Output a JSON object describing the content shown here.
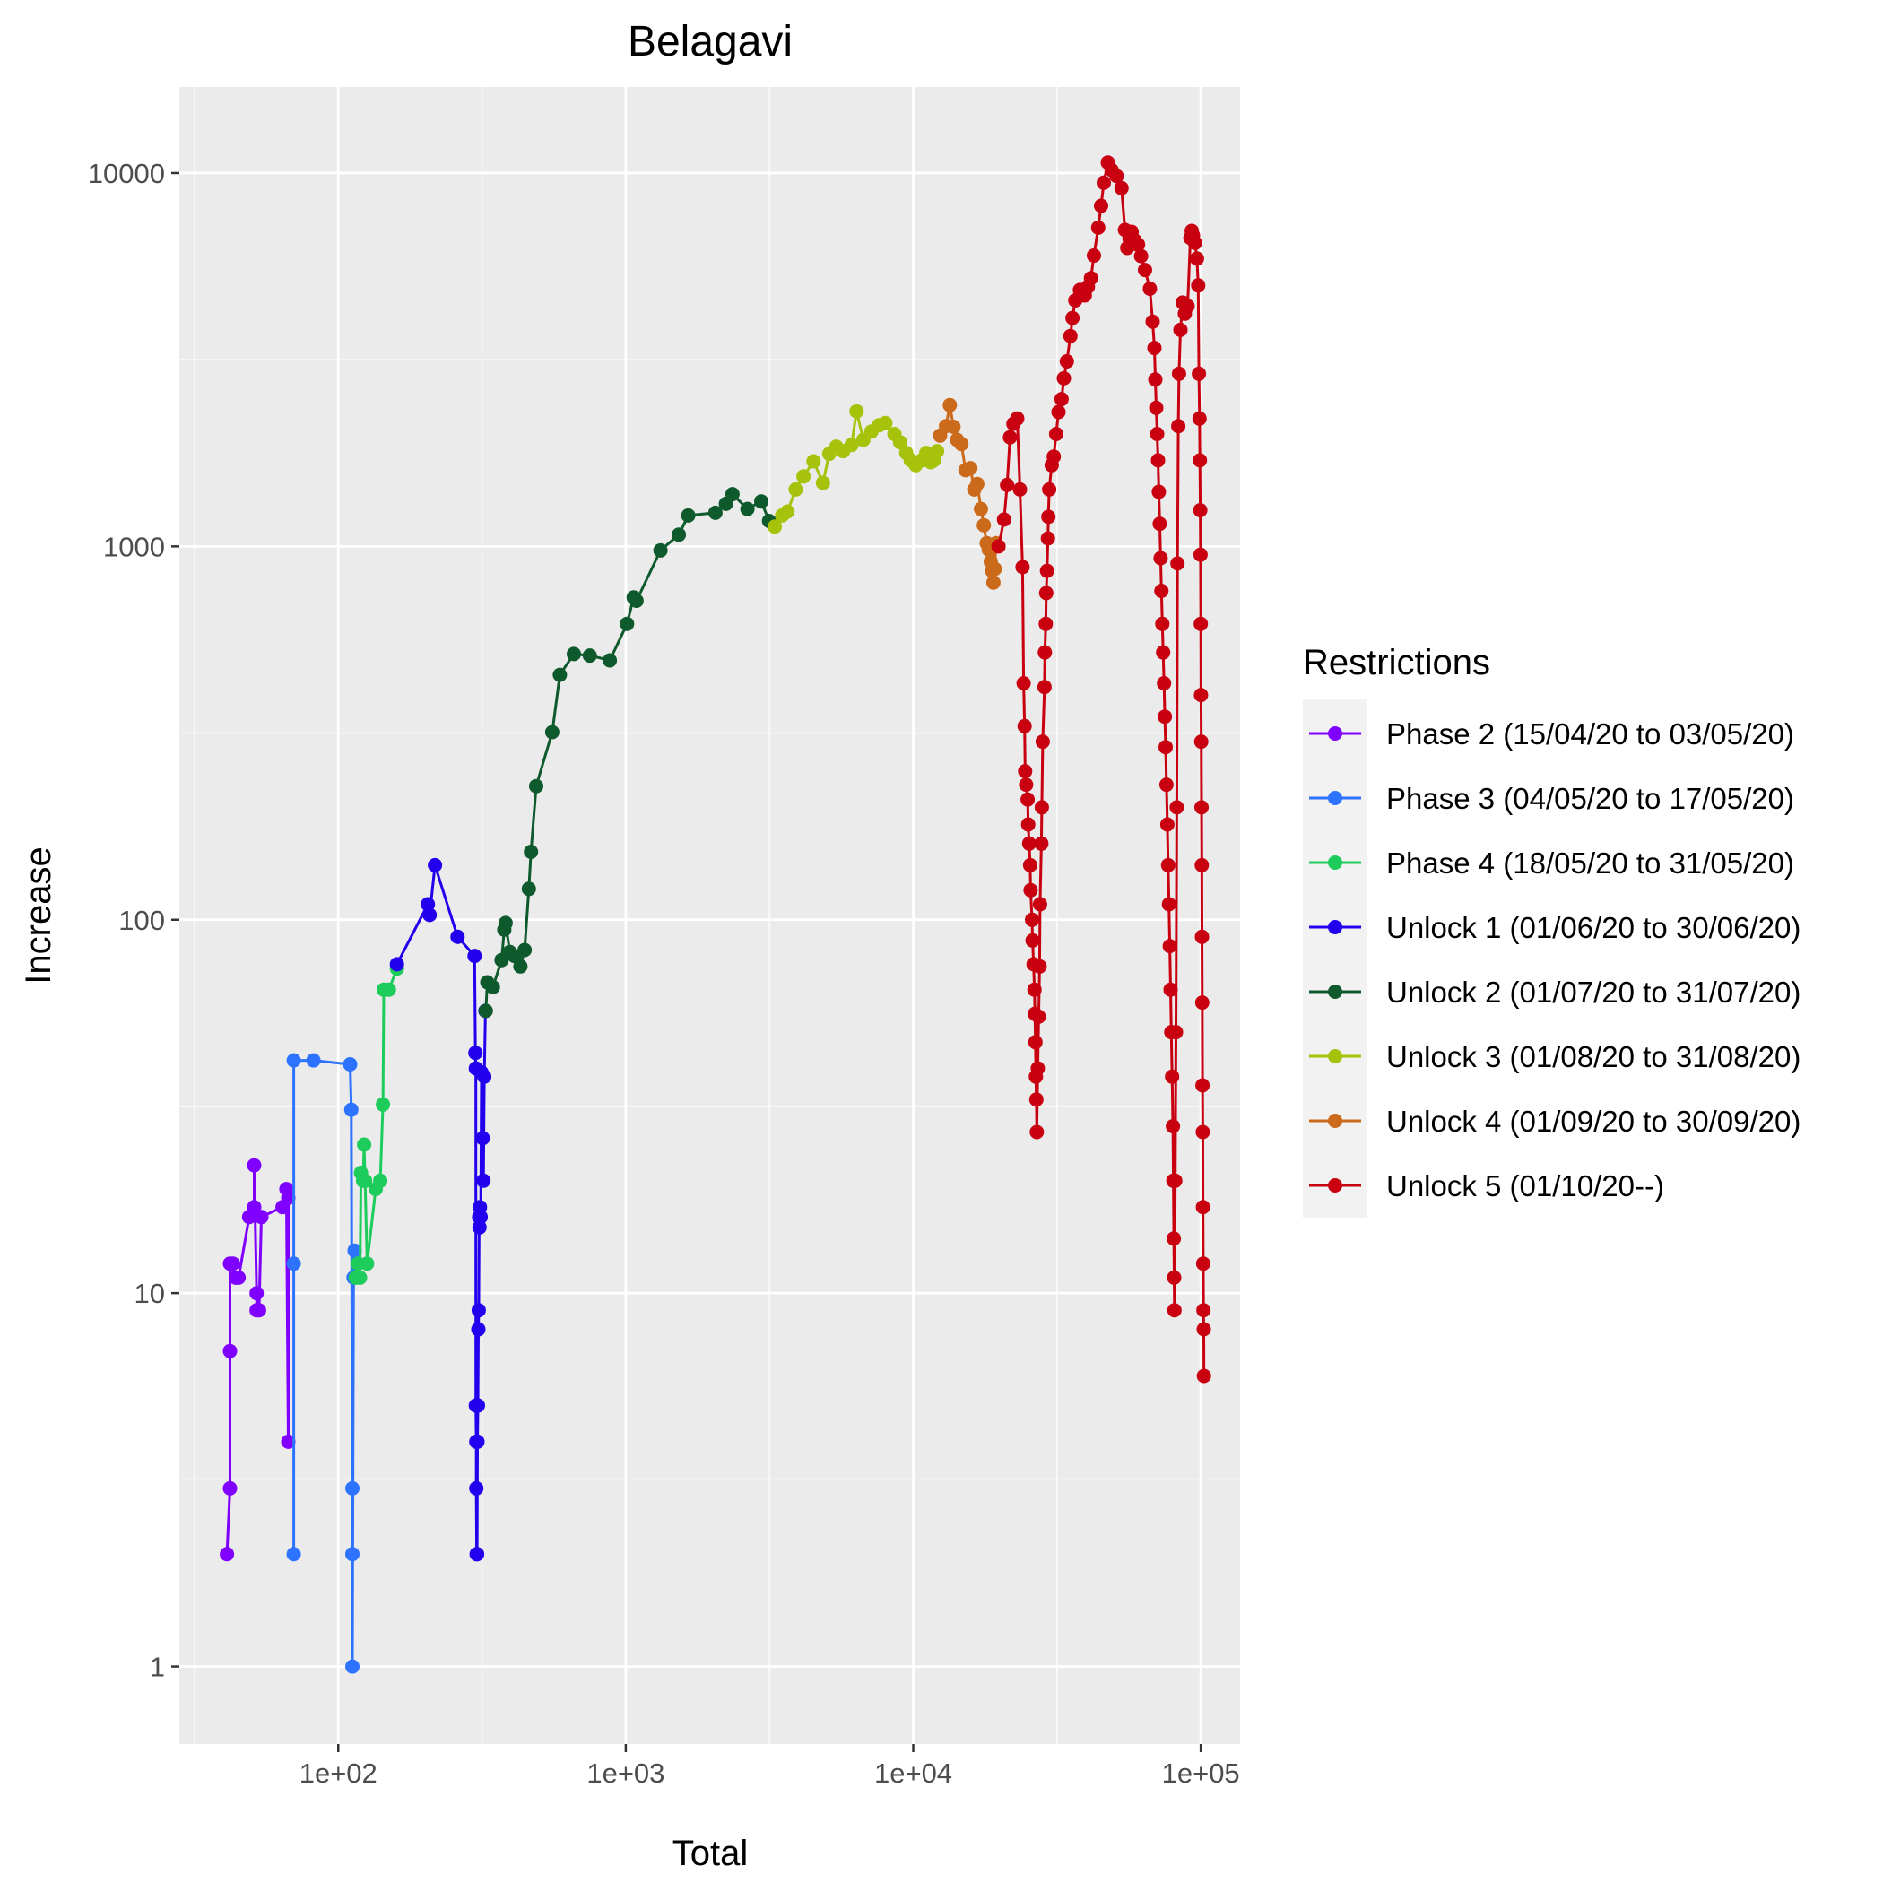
{
  "chart_data": {
    "type": "line",
    "title": "Belagavi",
    "xlabel": "Total",
    "ylabel": "Increase",
    "x_scale": "log10",
    "y_scale": "log10",
    "xlim": [
      28,
      137000
    ],
    "ylim": [
      0.62,
      17000
    ],
    "x_ticks": [
      {
        "value": 100,
        "label": "1e+02"
      },
      {
        "value": 1000,
        "label": "1e+03"
      },
      {
        "value": 10000,
        "label": "1e+04"
      },
      {
        "value": 100000,
        "label": "1e+05"
      }
    ],
    "y_ticks": [
      {
        "value": 1,
        "label": "1"
      },
      {
        "value": 10,
        "label": "10"
      },
      {
        "value": 100,
        "label": "100"
      },
      {
        "value": 1000,
        "label": "1000"
      },
      {
        "value": 10000,
        "label": "10000"
      }
    ],
    "grid": true,
    "legend": {
      "title": "Restrictions",
      "position": "right"
    },
    "series": [
      {
        "name": "Phase 2 (15/04/20 to 03/05/20)",
        "color": "#7f00ff",
        "points": [
          [
            41,
            2
          ],
          [
            42,
            3
          ],
          [
            42,
            7
          ],
          [
            42,
            12
          ],
          [
            43,
            12
          ],
          [
            44,
            11
          ],
          [
            45,
            11
          ],
          [
            49,
            16
          ],
          [
            51,
            17
          ],
          [
            51,
            22
          ],
          [
            52,
            10
          ],
          [
            52,
            9
          ],
          [
            53,
            9
          ],
          [
            54,
            16
          ],
          [
            64,
            17
          ],
          [
            66,
            19
          ],
          [
            67,
            4
          ],
          [
            67,
            18
          ]
        ]
      },
      {
        "name": "Phase 3 (04/05/20 to 17/05/20)",
        "color": "#2d73ff",
        "points": [
          [
            70,
            2
          ],
          [
            70,
            12
          ],
          [
            70,
            42
          ],
          [
            82,
            42
          ],
          [
            110,
            41
          ],
          [
            111,
            31
          ],
          [
            112,
            3
          ],
          [
            112,
            2
          ],
          [
            112,
            1
          ],
          [
            113,
            11
          ],
          [
            114,
            13
          ]
        ]
      },
      {
        "name": "Phase 4 (18/05/20 to 31/05/20)",
        "color": "#1ecc5c",
        "points": [
          [
            115,
            11
          ],
          [
            117,
            12
          ],
          [
            119,
            11
          ],
          [
            120,
            21
          ],
          [
            122,
            20
          ],
          [
            123,
            25
          ],
          [
            124,
            20
          ],
          [
            126,
            12
          ],
          [
            135,
            19
          ],
          [
            140,
            20
          ],
          [
            143,
            32
          ],
          [
            144,
            65
          ],
          [
            150,
            65
          ],
          [
            160,
            74
          ]
        ]
      },
      {
        "name": "Unlock 1 (01/06/20 to 30/06/20)",
        "color": "#2200ee",
        "points": [
          [
            160,
            76
          ],
          [
            205,
            110
          ],
          [
            208,
            103
          ],
          [
            217,
            140
          ],
          [
            260,
            90
          ],
          [
            298,
            80
          ],
          [
            300,
            44
          ],
          [
            301,
            40
          ],
          [
            301,
            5
          ],
          [
            302,
            4
          ],
          [
            302,
            3
          ],
          [
            303,
            2
          ],
          [
            304,
            2
          ],
          [
            305,
            4
          ],
          [
            306,
            5
          ],
          [
            307,
            8
          ],
          [
            308,
            9
          ],
          [
            309,
            16
          ],
          [
            310,
            15
          ],
          [
            311,
            17
          ],
          [
            313,
            16
          ],
          [
            315,
            39
          ],
          [
            318,
            26
          ],
          [
            320,
            20
          ],
          [
            322,
            38
          ],
          [
            325,
            57
          ]
        ]
      },
      {
        "name": "Unlock 2 (01/07/20 to 31/07/20)",
        "color": "#0f5a2c",
        "points": [
          [
            326,
            57
          ],
          [
            330,
            68
          ],
          [
            345,
            66
          ],
          [
            370,
            78
          ],
          [
            378,
            94
          ],
          [
            382,
            98
          ],
          [
            395,
            82
          ],
          [
            410,
            80
          ],
          [
            430,
            75
          ],
          [
            445,
            83
          ],
          [
            460,
            121
          ],
          [
            468,
            152
          ],
          [
            488,
            228
          ],
          [
            555,
            318
          ],
          [
            590,
            453
          ],
          [
            660,
            515
          ],
          [
            750,
            510
          ],
          [
            880,
            495
          ],
          [
            1010,
            620
          ],
          [
            1065,
            730
          ],
          [
            1090,
            715
          ],
          [
            1320,
            975
          ],
          [
            1530,
            1075
          ],
          [
            1650,
            1210
          ],
          [
            2050,
            1230
          ],
          [
            2230,
            1300
          ],
          [
            2350,
            1380
          ],
          [
            2650,
            1260
          ],
          [
            2960,
            1320
          ],
          [
            3150,
            1170
          ]
        ]
      },
      {
        "name": "Unlock 3 (01/08/20 to 31/08/20)",
        "color": "#a7c20b",
        "points": [
          [
            3300,
            1130
          ],
          [
            3500,
            1210
          ],
          [
            3650,
            1240
          ],
          [
            3900,
            1420
          ],
          [
            4150,
            1540
          ],
          [
            4500,
            1690
          ],
          [
            4850,
            1480
          ],
          [
            5100,
            1770
          ],
          [
            5400,
            1850
          ],
          [
            5700,
            1800
          ],
          [
            6100,
            1870
          ],
          [
            6350,
            2300
          ],
          [
            6700,
            1930
          ],
          [
            7150,
            2030
          ],
          [
            7600,
            2110
          ],
          [
            8000,
            2140
          ],
          [
            8600,
            2000
          ],
          [
            9000,
            1900
          ],
          [
            9450,
            1780
          ],
          [
            9800,
            1700
          ],
          [
            10200,
            1650
          ],
          [
            10700,
            1700
          ],
          [
            11100,
            1780
          ],
          [
            11500,
            1680
          ],
          [
            11800,
            1700
          ],
          [
            12100,
            1800
          ]
        ]
      },
      {
        "name": "Unlock 4 (01/09/20 to 30/09/20)",
        "color": "#cc6a1c",
        "points": [
          [
            12400,
            1980
          ],
          [
            13000,
            2100
          ],
          [
            13400,
            2390
          ],
          [
            13800,
            2090
          ],
          [
            14200,
            1930
          ],
          [
            14700,
            1880
          ],
          [
            15200,
            1600
          ],
          [
            15800,
            1620
          ],
          [
            16300,
            1420
          ],
          [
            16700,
            1470
          ],
          [
            17200,
            1260
          ],
          [
            17600,
            1140
          ],
          [
            18000,
            1020
          ],
          [
            18300,
            980
          ],
          [
            18600,
            910
          ],
          [
            18800,
            860
          ],
          [
            19000,
            800
          ],
          [
            19200,
            870
          ],
          [
            19400,
            1020
          ]
        ]
      },
      {
        "name": "Unlock 5 (01/10/20--)",
        "color": "#c80010",
        "points": [
          [
            19800,
            1000
          ],
          [
            20700,
            1180
          ],
          [
            21200,
            1460
          ],
          [
            21700,
            1960
          ],
          [
            22300,
            2130
          ],
          [
            23000,
            2200
          ],
          [
            23500,
            1420
          ],
          [
            24000,
            880
          ],
          [
            24200,
            430
          ],
          [
            24400,
            330
          ],
          [
            24500,
            250
          ],
          [
            24700,
            230
          ],
          [
            25000,
            210
          ],
          [
            25100,
            180
          ],
          [
            25300,
            160
          ],
          [
            25500,
            140
          ],
          [
            25600,
            120
          ],
          [
            25900,
            100
          ],
          [
            26000,
            88
          ],
          [
            26200,
            76
          ],
          [
            26400,
            65
          ],
          [
            26500,
            56
          ],
          [
            26600,
            47
          ],
          [
            26700,
            38
          ],
          [
            26800,
            33
          ],
          [
            26900,
            27
          ],
          [
            27100,
            40
          ],
          [
            27300,
            55
          ],
          [
            27500,
            75
          ],
          [
            27600,
            110
          ],
          [
            27900,
            160
          ],
          [
            28000,
            200
          ],
          [
            28200,
            300
          ],
          [
            28600,
            420
          ],
          [
            28700,
            520
          ],
          [
            28900,
            620
          ],
          [
            29000,
            750
          ],
          [
            29200,
            860
          ],
          [
            29400,
            1050
          ],
          [
            29500,
            1200
          ],
          [
            29700,
            1420
          ],
          [
            30300,
            1650
          ],
          [
            30800,
            1740
          ],
          [
            31400,
            2000
          ],
          [
            32000,
            2290
          ],
          [
            32800,
            2480
          ],
          [
            33400,
            2820
          ],
          [
            34200,
            3130
          ],
          [
            35200,
            3660
          ],
          [
            35800,
            4090
          ],
          [
            36600,
            4560
          ],
          [
            38000,
            4860
          ],
          [
            39500,
            4700
          ],
          [
            40500,
            4960
          ],
          [
            41500,
            5230
          ],
          [
            42500,
            6010
          ],
          [
            44000,
            7140
          ],
          [
            45000,
            8170
          ],
          [
            46000,
            9420
          ],
          [
            47500,
            10670
          ],
          [
            49000,
            10190
          ],
          [
            51000,
            9810
          ],
          [
            53000,
            9110
          ],
          [
            54500,
            7040
          ],
          [
            55500,
            6300
          ],
          [
            56500,
            6670
          ],
          [
            57500,
            6960
          ],
          [
            59000,
            6590
          ],
          [
            60500,
            6430
          ],
          [
            62000,
            5990
          ],
          [
            64000,
            5500
          ],
          [
            66500,
            4900
          ],
          [
            68000,
            4000
          ],
          [
            69000,
            3400
          ],
          [
            69500,
            2800
          ],
          [
            70000,
            2350
          ],
          [
            70500,
            2000
          ],
          [
            71000,
            1700
          ],
          [
            71500,
            1400
          ],
          [
            72000,
            1150
          ],
          [
            72500,
            930
          ],
          [
            73000,
            760
          ],
          [
            73500,
            620
          ],
          [
            74000,
            520
          ],
          [
            74500,
            430
          ],
          [
            75000,
            350
          ],
          [
            75500,
            290
          ],
          [
            76000,
            230
          ],
          [
            76500,
            180
          ],
          [
            77000,
            140
          ],
          [
            77500,
            110
          ],
          [
            78000,
            85
          ],
          [
            78500,
            65
          ],
          [
            79000,
            50
          ],
          [
            79500,
            38
          ],
          [
            80000,
            28
          ],
          [
            80300,
            20
          ],
          [
            80600,
            14
          ],
          [
            80800,
            11
          ],
          [
            81000,
            9
          ],
          [
            81500,
            20
          ],
          [
            82000,
            50
          ],
          [
            82500,
            200
          ],
          [
            83000,
            900
          ],
          [
            83500,
            2100
          ],
          [
            84000,
            2900
          ],
          [
            85000,
            3800
          ],
          [
            86500,
            4500
          ],
          [
            88000,
            4200
          ],
          [
            90000,
            4400
          ],
          [
            92000,
            6700
          ],
          [
            93000,
            7000
          ],
          [
            94000,
            6800
          ],
          [
            95500,
            6500
          ],
          [
            97000,
            5900
          ],
          [
            98000,
            5000
          ],
          [
            98500,
            2900
          ],
          [
            99000,
            2200
          ],
          [
            99300,
            1700
          ],
          [
            99600,
            1250
          ],
          [
            99800,
            950
          ],
          [
            100000,
            620
          ],
          [
            100200,
            400
          ],
          [
            100400,
            300
          ],
          [
            100600,
            200
          ],
          [
            100800,
            140
          ],
          [
            101000,
            90
          ],
          [
            101200,
            60
          ],
          [
            101400,
            36
          ],
          [
            101600,
            27
          ],
          [
            101800,
            17
          ],
          [
            102000,
            12
          ],
          [
            102200,
            9
          ],
          [
            102400,
            8
          ],
          [
            102600,
            6
          ]
        ]
      }
    ]
  }
}
